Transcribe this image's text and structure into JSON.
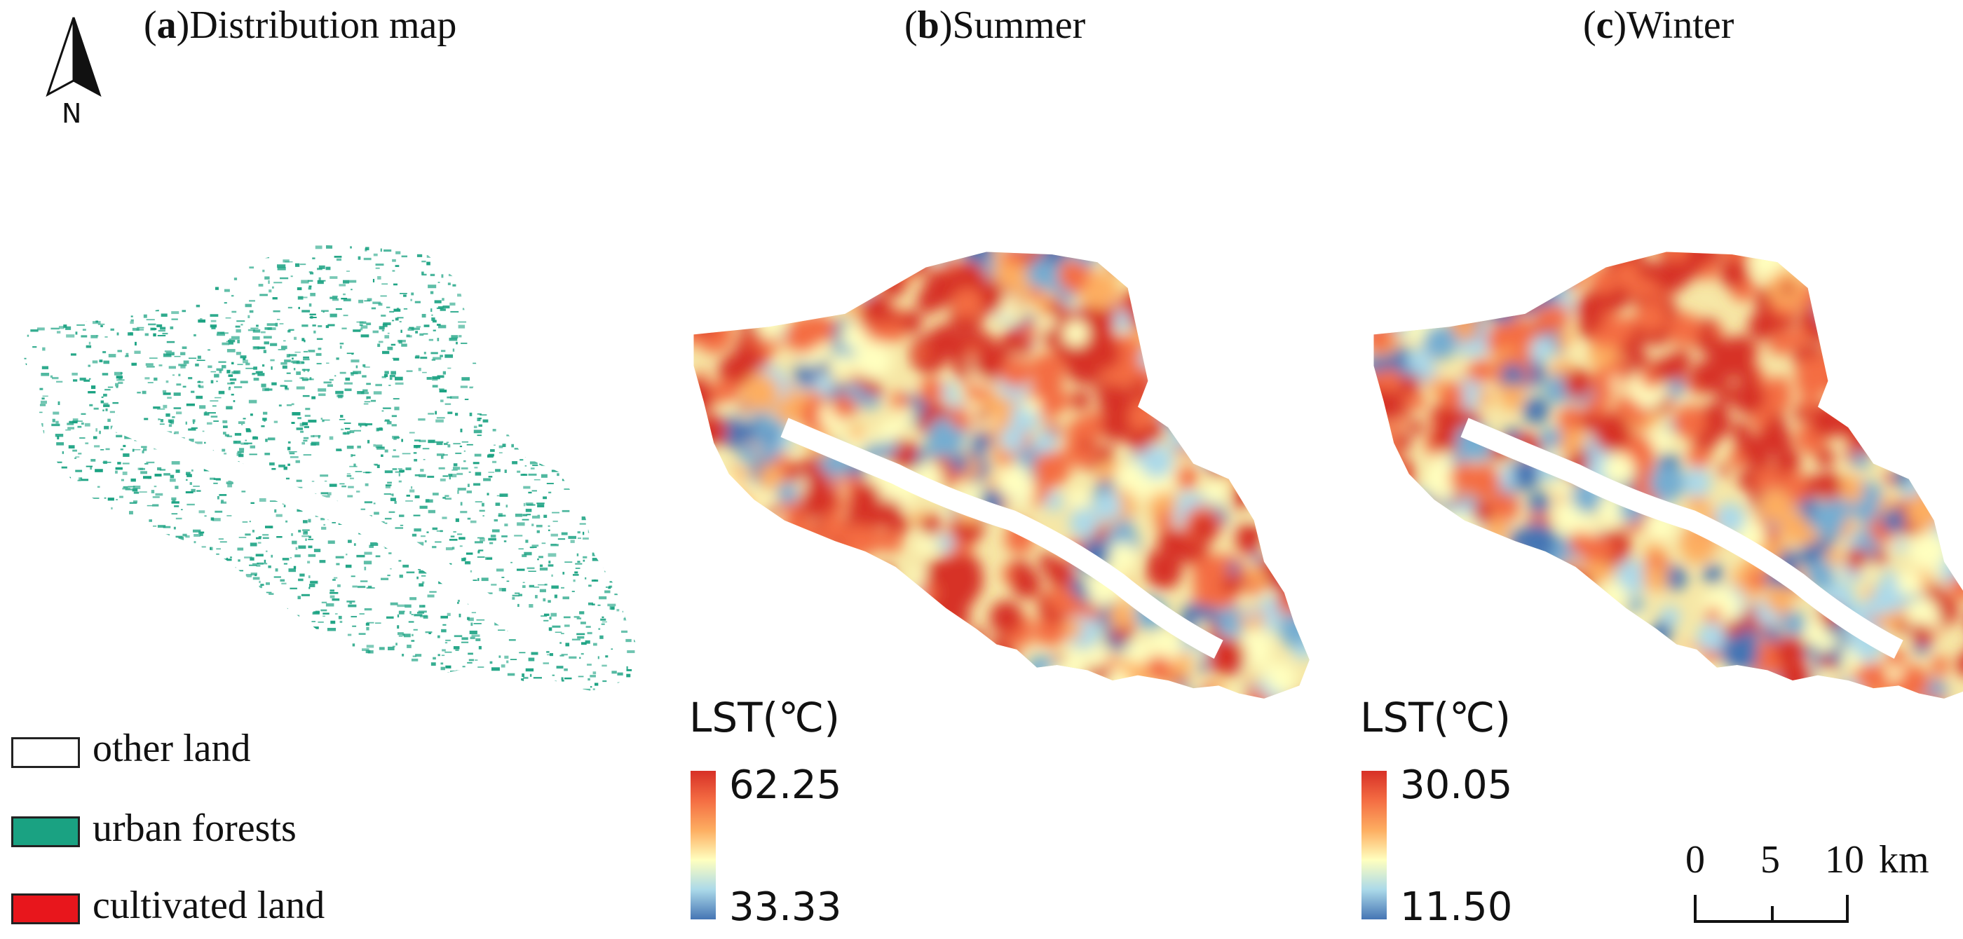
{
  "north_arrow": {
    "label": "N"
  },
  "panels": [
    {
      "letter": "a",
      "title": "Distribution map"
    },
    {
      "letter": "b",
      "title": "Summer"
    },
    {
      "letter": "c",
      "title": "Winter"
    }
  ],
  "legend": {
    "items": [
      {
        "label": "other land",
        "color": "#ffffff"
      },
      {
        "label": "urban forests",
        "color": "#1aa282"
      },
      {
        "label": "cultivated land",
        "color": "#e8161c"
      }
    ]
  },
  "colorbars": [
    {
      "title": "LST(℃)",
      "max": "62.25",
      "min": "33.33",
      "colors": [
        "#d73027",
        "#f46d43",
        "#fdae61",
        "#ffffbf",
        "#abd9e9",
        "#4575b4"
      ]
    },
    {
      "title": "LST(℃)",
      "max": "30.05",
      "min": "11.50",
      "colors": [
        "#d73027",
        "#f46d43",
        "#fdae61",
        "#ffffbf",
        "#abd9e9",
        "#4575b4"
      ]
    }
  ],
  "scale_bar": {
    "labels": [
      "0",
      "5",
      "10"
    ],
    "unit": "km"
  }
}
